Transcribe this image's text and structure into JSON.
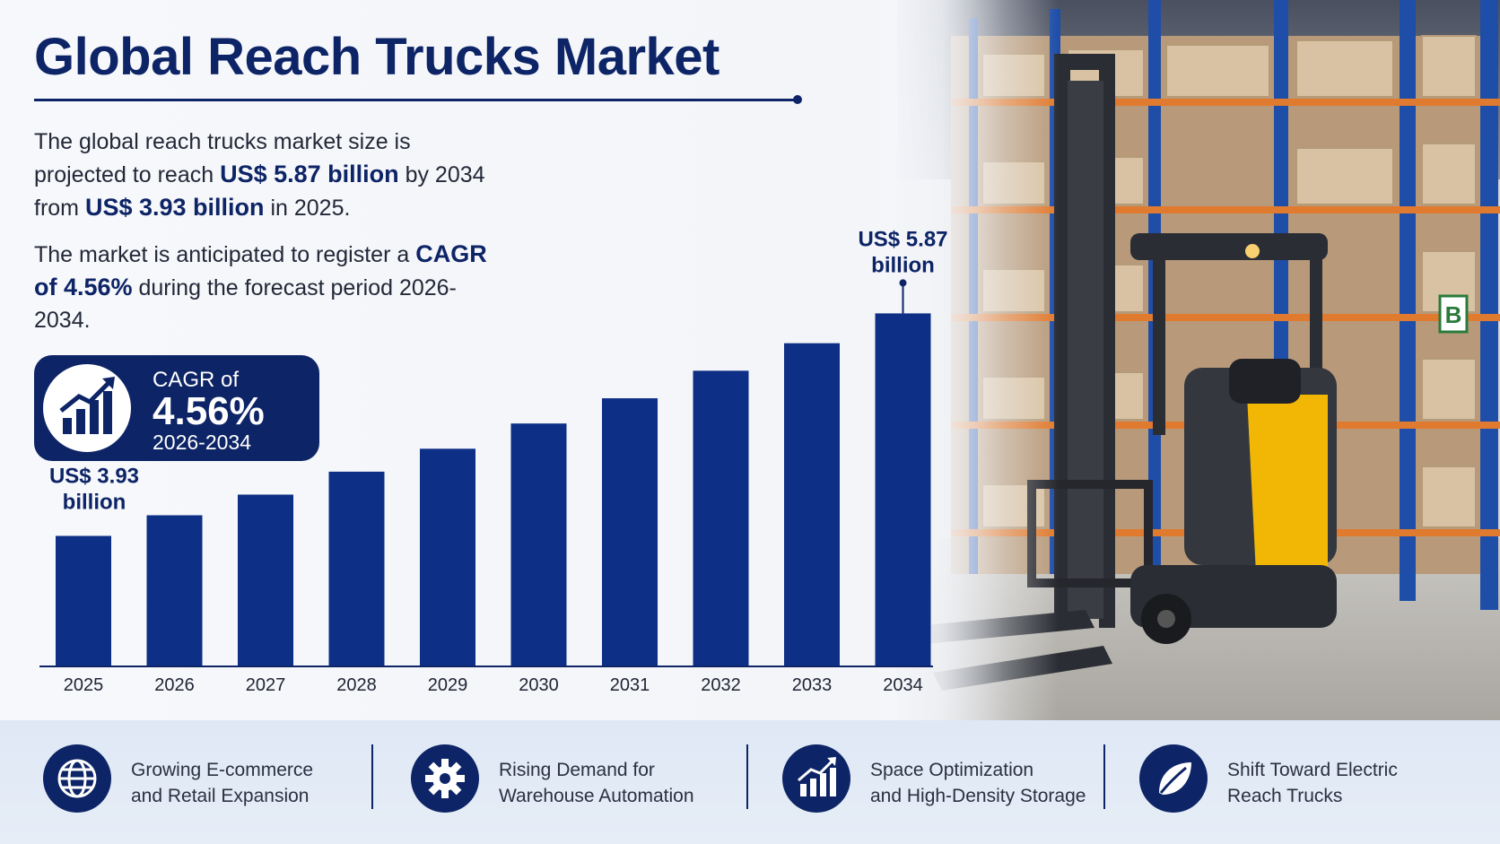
{
  "title": "Global Reach Trucks Market",
  "summary": {
    "p1_pre": "The global reach trucks market size is projected to reach ",
    "p1_b1": "US$ 5.87 billion",
    "p1_mid": " by 2034 from ",
    "p1_b2": "US$ 3.93 billion",
    "p1_post": " in 2025.",
    "p2_pre": "The market is anticipated to register a ",
    "p2_b": "CAGR of 4.56%",
    "p2_post": " during the forecast period 2026-2034."
  },
  "cagr_badge": {
    "label": "CAGR of",
    "value": "4.56%",
    "period": "2026-2034",
    "icon": "growth-chart-icon"
  },
  "chart_data": {
    "type": "bar",
    "categories": [
      "2025",
      "2026",
      "2027",
      "2028",
      "2029",
      "2030",
      "2031",
      "2032",
      "2033",
      "2034"
    ],
    "values": [
      3.93,
      4.11,
      4.29,
      4.49,
      4.69,
      4.91,
      5.13,
      5.37,
      5.61,
      5.87
    ],
    "data_labels": {
      "first": "US$ 3.93\nbillion",
      "last": "US$ 5.87\nbillion"
    },
    "bar_color": "#0d2f86",
    "ylim": [
      2.8,
      6.1
    ]
  },
  "features": [
    {
      "icon": "globe-icon",
      "line1": "Growing E-commerce",
      "line2": "and Retail Expansion"
    },
    {
      "icon": "gear-icon",
      "line1": "Rising Demand for",
      "line2": "Warehouse Automation"
    },
    {
      "icon": "bar-growth-icon",
      "line1": "Space Optimization",
      "line2": "and High-Density Storage"
    },
    {
      "icon": "leaf-icon",
      "line1": "Shift Toward Electric",
      "line2": "Reach Trucks"
    }
  ],
  "colors": {
    "navy": "#0d2466",
    "bar": "#0d2f86",
    "forklift_yellow": "#f2b705"
  },
  "scene": {
    "shelf_sign": "B"
  }
}
